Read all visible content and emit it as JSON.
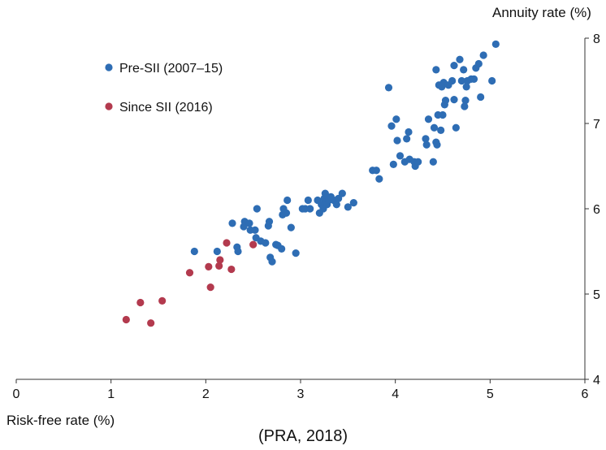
{
  "caption": "(PRA, 2018)",
  "chart_data": {
    "type": "scatter",
    "xlabel": "Risk-free rate (%)",
    "ylabel": "Annuity rate (%)",
    "xlim": [
      0,
      6
    ],
    "ylim": [
      4,
      8
    ],
    "xticks": [
      "0",
      "1",
      "2",
      "3",
      "4",
      "5",
      "6"
    ],
    "yticks": [
      "4",
      "5",
      "6",
      "7",
      "8"
    ],
    "grid": false,
    "legend_position": "top-left",
    "series": [
      {
        "name": "Pre-SII (2007–15)",
        "color": "#2e6db4",
        "points": [
          [
            1.88,
            5.5
          ],
          [
            2.12,
            5.5
          ],
          [
            2.28,
            5.83
          ],
          [
            2.33,
            5.55
          ],
          [
            2.34,
            5.5
          ],
          [
            2.4,
            5.79
          ],
          [
            2.41,
            5.85
          ],
          [
            2.46,
            5.83
          ],
          [
            2.47,
            5.75
          ],
          [
            2.52,
            5.75
          ],
          [
            2.53,
            5.66
          ],
          [
            2.54,
            6.0
          ],
          [
            2.58,
            5.62
          ],
          [
            2.63,
            5.6
          ],
          [
            2.66,
            5.8
          ],
          [
            2.67,
            5.85
          ],
          [
            2.68,
            5.43
          ],
          [
            2.7,
            5.38
          ],
          [
            2.74,
            5.58
          ],
          [
            2.76,
            5.57
          ],
          [
            2.8,
            5.53
          ],
          [
            2.81,
            5.93
          ],
          [
            2.82,
            6.0
          ],
          [
            2.85,
            5.95
          ],
          [
            2.86,
            6.1
          ],
          [
            2.9,
            5.78
          ],
          [
            2.95,
            5.48
          ],
          [
            3.02,
            6.0
          ],
          [
            3.05,
            6.0
          ],
          [
            3.08,
            6.1
          ],
          [
            3.1,
            6.0
          ],
          [
            3.18,
            6.1
          ],
          [
            3.2,
            5.95
          ],
          [
            3.22,
            6.05
          ],
          [
            3.24,
            6.0
          ],
          [
            3.25,
            6.12
          ],
          [
            3.26,
            6.18
          ],
          [
            3.27,
            6.08
          ],
          [
            3.28,
            6.05
          ],
          [
            3.3,
            6.1
          ],
          [
            3.32,
            6.14
          ],
          [
            3.35,
            6.1
          ],
          [
            3.38,
            6.05
          ],
          [
            3.4,
            6.12
          ],
          [
            3.44,
            6.18
          ],
          [
            3.5,
            6.02
          ],
          [
            3.56,
            6.07
          ],
          [
            3.76,
            6.45
          ],
          [
            3.8,
            6.45
          ],
          [
            3.83,
            6.35
          ],
          [
            3.93,
            7.42
          ],
          [
            3.96,
            6.97
          ],
          [
            3.98,
            6.52
          ],
          [
            4.01,
            7.05
          ],
          [
            4.02,
            6.8
          ],
          [
            4.05,
            6.62
          ],
          [
            4.1,
            6.55
          ],
          [
            4.12,
            6.82
          ],
          [
            4.14,
            6.9
          ],
          [
            4.15,
            6.58
          ],
          [
            4.2,
            6.55
          ],
          [
            4.21,
            6.5
          ],
          [
            4.24,
            6.55
          ],
          [
            4.32,
            6.82
          ],
          [
            4.33,
            6.75
          ],
          [
            4.35,
            7.05
          ],
          [
            4.4,
            6.55
          ],
          [
            4.41,
            6.95
          ],
          [
            4.43,
            6.78
          ],
          [
            4.43,
            7.63
          ],
          [
            4.44,
            6.75
          ],
          [
            4.45,
            7.1
          ],
          [
            4.46,
            7.45
          ],
          [
            4.48,
            6.92
          ],
          [
            4.49,
            7.43
          ],
          [
            4.5,
            7.1
          ],
          [
            4.51,
            7.48
          ],
          [
            4.52,
            7.22
          ],
          [
            4.53,
            7.27
          ],
          [
            4.56,
            7.45
          ],
          [
            4.6,
            7.5
          ],
          [
            4.62,
            7.28
          ],
          [
            4.62,
            7.68
          ],
          [
            4.64,
            6.95
          ],
          [
            4.68,
            7.75
          ],
          [
            4.7,
            7.5
          ],
          [
            4.72,
            7.63
          ],
          [
            4.73,
            7.2
          ],
          [
            4.74,
            7.27
          ],
          [
            4.75,
            7.43
          ],
          [
            4.76,
            7.5
          ],
          [
            4.8,
            7.52
          ],
          [
            4.83,
            7.52
          ],
          [
            4.85,
            7.65
          ],
          [
            4.88,
            7.7
          ],
          [
            4.9,
            7.31
          ],
          [
            4.93,
            7.8
          ],
          [
            5.02,
            7.5
          ],
          [
            5.06,
            7.93
          ]
        ]
      },
      {
        "name": "Since SII (2016)",
        "color": "#b33a4e",
        "points": [
          [
            1.16,
            4.7
          ],
          [
            1.31,
            4.9
          ],
          [
            1.42,
            4.66
          ],
          [
            1.54,
            4.92
          ],
          [
            1.83,
            5.25
          ],
          [
            2.03,
            5.32
          ],
          [
            2.05,
            5.08
          ],
          [
            2.14,
            5.33
          ],
          [
            2.15,
            5.4
          ],
          [
            2.22,
            5.6
          ],
          [
            2.27,
            5.29
          ],
          [
            2.5,
            5.58
          ]
        ]
      }
    ]
  }
}
